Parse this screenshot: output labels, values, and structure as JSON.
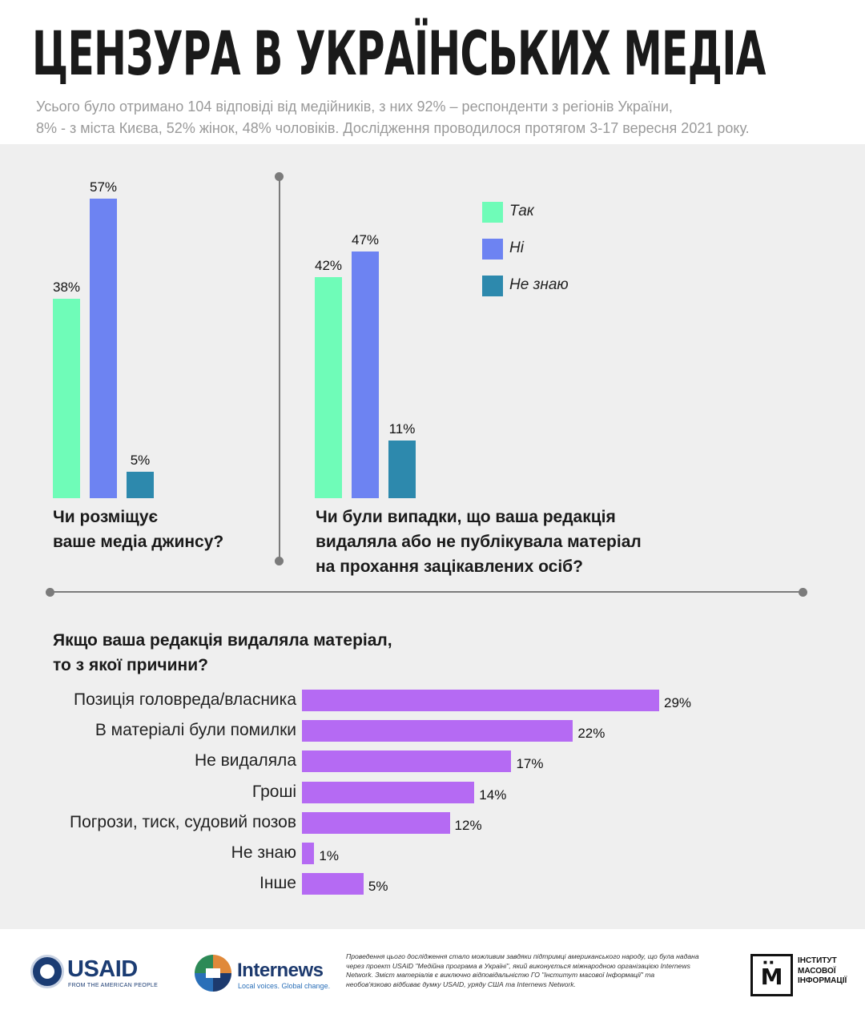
{
  "header": {
    "title": "ЦЕНЗУРА В УКРАЇНСЬКИХ МЕДІА",
    "subtitle_line1": "Усього було отримано 104 відповіді від медійників, з них 92% – респонденти з регіонів України,",
    "subtitle_line2": "8% - з міста Києва, 52% жінок, 48% чоловіків. Дослідження проводилося протягом 3-17 вересня 2021 року."
  },
  "colors": {
    "yes": "#6ffcb8",
    "no": "#6d83f2",
    "dont_know": "#2d89ad",
    "reasons": "#b56af3"
  },
  "legend": {
    "yes": "Так",
    "no": "Ні",
    "dont_know": "Не знаю"
  },
  "chart_data": [
    {
      "type": "bar",
      "title": "Чи розміщує ваше медіа джинсу?",
      "categories": [
        "Так",
        "Ні",
        "Не знаю"
      ],
      "values": [
        38,
        57,
        5
      ],
      "labels": [
        "38%",
        "57%",
        "5%"
      ],
      "ylim": [
        0,
        57
      ],
      "question_line1": "Чи розміщує",
      "question_line2": "ваше медіа джинсу?"
    },
    {
      "type": "bar",
      "title": "Чи були випадки, що ваша редакція видаляла або не публікувала матеріал на прохання зацікавлених осіб?",
      "categories": [
        "Так",
        "Ні",
        "Не знаю"
      ],
      "values": [
        42,
        47,
        11
      ],
      "labels": [
        "42%",
        "47%",
        "11%"
      ],
      "ylim": [
        0,
        47
      ],
      "question_line1": "Чи були випадки, що ваша редакція",
      "question_line2": "видаляла або не публікувала матеріал",
      "question_line3": "на прохання зацікавлених осіб?"
    },
    {
      "type": "bar",
      "orientation": "horizontal",
      "title": "Якщо ваша редакція видаляла матеріал, то з якої причини?",
      "title_line1": "Якщо ваша редакція видаляла матеріал,",
      "title_line2": "то з якої причини?",
      "categories": [
        "Позиція головреда/власника",
        "В матеріалі були помилки",
        "Не видаляла",
        "Гроші",
        "Погрози, тиск, судовий позов",
        "Не знаю",
        "Інше"
      ],
      "values": [
        29,
        22,
        17,
        14,
        12,
        1,
        5
      ],
      "labels": [
        "29%",
        "22%",
        "17%",
        "14%",
        "12%",
        "1%",
        "5%"
      ],
      "xlim": [
        0,
        29
      ]
    }
  ],
  "footer": {
    "usaid_name": "USAID",
    "usaid_tagline": "FROM THE AMERICAN PEOPLE",
    "internews_name": "Internews",
    "internews_tagline": "Local voices. Global change.",
    "disclaimer": "Проведення цього дослідження стало можливим завдяки підтримці американського народу, що була надана через проект USAID \"Медійна програма в Україні\", який виконується міжнародною організацією Internews Network. Зміст матеріалів є виключно відповідальністю ГО \"Інститут масової Інформації\" та необов'язково відбиває думку USAID, уряду США та Internews Network.",
    "imi_letter": "М",
    "imi_line1": "ІНСТИТУТ",
    "imi_line2": "МАСОВОЇ",
    "imi_line3": "ІНФОРМАЦІЇ"
  }
}
